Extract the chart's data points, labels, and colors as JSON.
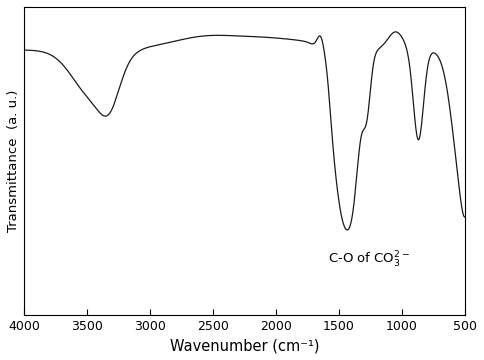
{
  "xlabel": "Wavenumber (cm⁻¹)",
  "ylabel": "Transmittance  (a. u.)",
  "line_color": "#1a1a1a",
  "background_color": "#ffffff",
  "grid_color": "#c8c8c8",
  "annotation_text": "C-O of CO$_3^{2-}$",
  "xticks": [
    4000,
    3500,
    3000,
    2500,
    2000,
    1500,
    1000,
    500
  ]
}
